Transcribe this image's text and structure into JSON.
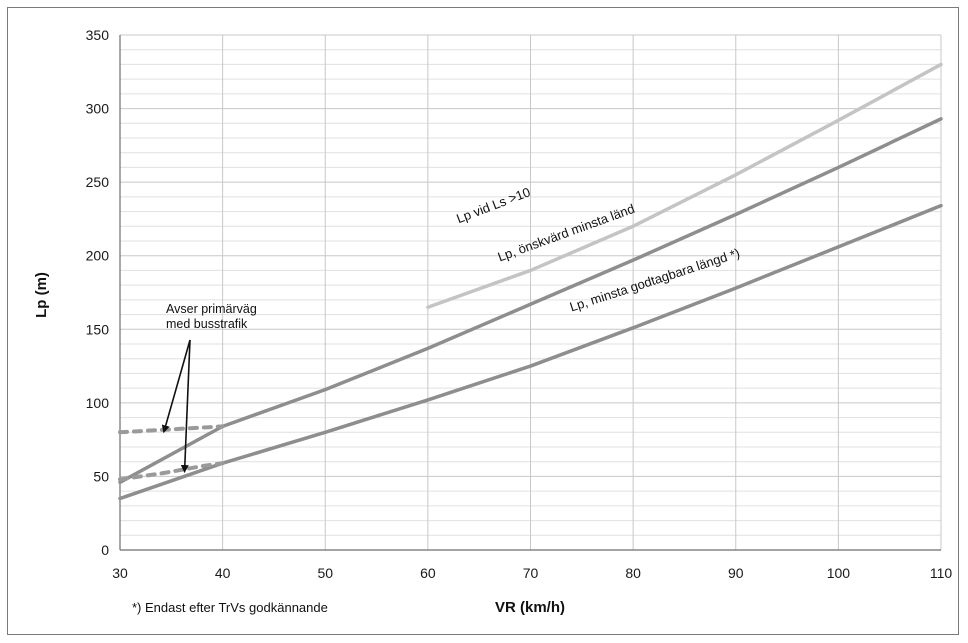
{
  "chart_data": {
    "type": "line",
    "xlabel": "VR (km/h)",
    "ylabel": "Lp (m)",
    "xlim": [
      30,
      110
    ],
    "ylim": [
      0,
      350
    ],
    "x_ticks": [
      30,
      40,
      50,
      60,
      70,
      80,
      90,
      100,
      110
    ],
    "y_ticks": [
      0,
      50,
      100,
      150,
      200,
      250,
      300,
      350
    ],
    "grid": true,
    "minor_grid_y_step": 10,
    "series": [
      {
        "name": "Lp vid Ls >10",
        "color": "#c4c4c4",
        "style": "solid",
        "points": [
          [
            60,
            165
          ],
          [
            70,
            190
          ],
          [
            80,
            220
          ],
          [
            90,
            255
          ],
          [
            100,
            292
          ],
          [
            110,
            330
          ]
        ]
      },
      {
        "name": "Lp, önskvärd minsta länd",
        "color": "#8e8e8e",
        "style": "solid",
        "points": [
          [
            30,
            46
          ],
          [
            40,
            84
          ],
          [
            50,
            109
          ],
          [
            60,
            137
          ],
          [
            70,
            167
          ],
          [
            80,
            197
          ],
          [
            90,
            228
          ],
          [
            100,
            260
          ],
          [
            110,
            293
          ]
        ]
      },
      {
        "name": "Lp, minsta godtagbara längd *)",
        "color": "#8e8e8e",
        "style": "solid",
        "points": [
          [
            30,
            35
          ],
          [
            40,
            59
          ],
          [
            50,
            80
          ],
          [
            60,
            102
          ],
          [
            70,
            125
          ],
          [
            80,
            151
          ],
          [
            90,
            178
          ],
          [
            100,
            206
          ],
          [
            110,
            234
          ]
        ]
      },
      {
        "name": "",
        "color": "#9a9a9a",
        "style": "dashed",
        "points": [
          [
            30,
            80
          ],
          [
            40,
            84
          ]
        ]
      },
      {
        "name": "",
        "color": "#9a9a9a",
        "style": "dashed",
        "points": [
          [
            30,
            48
          ],
          [
            34,
            52
          ],
          [
            38,
            57
          ],
          [
            40,
            59
          ]
        ]
      }
    ],
    "annotations": [
      {
        "lines": [
          "Avser primärväg",
          "med busstrafik"
        ],
        "arrow_targets": [
          [
            34,
            82
          ],
          [
            36,
            55
          ]
        ]
      }
    ],
    "footnote": "*) Endast efter TrVs godkännande"
  }
}
